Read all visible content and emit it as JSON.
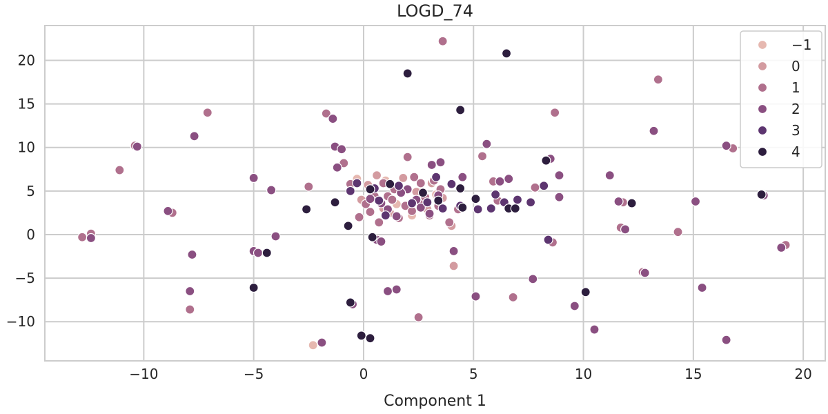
{
  "chart_data": {
    "type": "scatter",
    "title": "LOGD_74",
    "xlabel": "Component 1",
    "ylabel": "",
    "xlim": [
      -14.5,
      21
    ],
    "ylim": [
      -14.5,
      24
    ],
    "xticks": [
      -10,
      -5,
      0,
      5,
      10,
      15,
      20
    ],
    "yticks": [
      -10,
      -5,
      0,
      5,
      10,
      15,
      20
    ],
    "xtick_labels": [
      "−10",
      "−5",
      "0",
      "5",
      "10",
      "15",
      "20"
    ],
    "ytick_labels": [
      "−10",
      "−5",
      "0",
      "5",
      "10",
      "15",
      "20"
    ],
    "grid": true,
    "legend": {
      "placement": "top-right"
    },
    "series": [
      {
        "name": "−1",
        "color": "#e6b8b0",
        "points": [
          [
            -2.3,
            -12.7
          ],
          [
            1.5,
            3.5
          ],
          [
            0.4,
            4.8
          ],
          [
            2.2,
            2.2
          ],
          [
            -0.3,
            6.4
          ],
          [
            3.3,
            4.6
          ],
          [
            1.0,
            6.2
          ],
          [
            2.6,
            5.0
          ]
        ]
      },
      {
        "name": "0",
        "color": "#d39ba0",
        "points": [
          [
            4.1,
            -3.6
          ],
          [
            4.0,
            1.0
          ],
          [
            0.6,
            6.8
          ],
          [
            -0.1,
            4.0
          ],
          [
            1.8,
            6.5
          ],
          [
            2.9,
            2.9
          ],
          [
            3.6,
            4.2
          ],
          [
            1.2,
            2.5
          ],
          [
            0.2,
            5.7
          ],
          [
            2.4,
            4.9
          ],
          [
            0.9,
            3.0
          ],
          [
            3.1,
            5.9
          ]
        ]
      },
      {
        "name": "1",
        "color": "#b0708d",
        "points": [
          [
            -12.8,
            -0.3
          ],
          [
            -12.4,
            0.1
          ],
          [
            -11.1,
            7.4
          ],
          [
            -10.4,
            10.2
          ],
          [
            -8.7,
            2.5
          ],
          [
            -7.9,
            -8.6
          ],
          [
            -7.1,
            14.0
          ],
          [
            -2.5,
            5.5
          ],
          [
            -1.7,
            13.9
          ],
          [
            -0.9,
            8.2
          ],
          [
            -0.6,
            5.8
          ],
          [
            -0.2,
            2.0
          ],
          [
            0.3,
            2.6
          ],
          [
            0.7,
            1.4
          ],
          [
            1.1,
            4.4
          ],
          [
            1.4,
            5.2
          ],
          [
            1.6,
            1.9
          ],
          [
            2.0,
            8.9
          ],
          [
            2.3,
            6.6
          ],
          [
            2.5,
            -9.5
          ],
          [
            2.7,
            3.7
          ],
          [
            3.0,
            2.2
          ],
          [
            3.2,
            6.2
          ],
          [
            3.5,
            5.2
          ],
          [
            3.6,
            22.2
          ],
          [
            3.9,
            1.4
          ],
          [
            4.3,
            2.9
          ],
          [
            5.4,
            9.0
          ],
          [
            5.9,
            6.1
          ],
          [
            6.8,
            -7.2
          ],
          [
            7.8,
            5.4
          ],
          [
            8.6,
            -0.9
          ],
          [
            8.7,
            14.0
          ],
          [
            11.7,
            0.8
          ],
          [
            11.8,
            3.7
          ],
          [
            13.4,
            17.8
          ],
          [
            14.3,
            0.3
          ],
          [
            16.8,
            9.9
          ],
          [
            19.2,
            -1.2
          ],
          [
            12.7,
            -4.3
          ],
          [
            6.1,
            3.9
          ],
          [
            0.9,
            5.9
          ],
          [
            1.9,
            3.3
          ],
          [
            2.8,
            4.3
          ],
          [
            0.1,
            3.5
          ],
          [
            2.2,
            2.7
          ],
          [
            1.3,
            4.0
          ],
          [
            3.4,
            3.3
          ],
          [
            0.5,
            4.4
          ],
          [
            2.6,
            5.9
          ]
        ]
      },
      {
        "name": "2",
        "color": "#8a4f81",
        "points": [
          [
            -12.4,
            -0.4
          ],
          [
            -10.3,
            10.1
          ],
          [
            -8.9,
            2.7
          ],
          [
            -7.9,
            -6.5
          ],
          [
            -7.7,
            11.3
          ],
          [
            -7.8,
            -2.3
          ],
          [
            -5.0,
            6.5
          ],
          [
            -5.0,
            -1.9
          ],
          [
            -4.8,
            -2.1
          ],
          [
            -4.2,
            5.1
          ],
          [
            -4.0,
            -0.2
          ],
          [
            -1.9,
            -12.4
          ],
          [
            -1.4,
            13.3
          ],
          [
            -1.3,
            10.1
          ],
          [
            -1.2,
            7.7
          ],
          [
            -1.0,
            9.8
          ],
          [
            -0.5,
            -8.0
          ],
          [
            0.6,
            -0.6
          ],
          [
            0.8,
            -0.8
          ],
          [
            1.1,
            -6.5
          ],
          [
            1.5,
            -6.3
          ],
          [
            3.1,
            8.0
          ],
          [
            3.5,
            8.3
          ],
          [
            4.1,
            -1.9
          ],
          [
            4.5,
            6.6
          ],
          [
            5.1,
            -7.1
          ],
          [
            5.6,
            10.4
          ],
          [
            6.2,
            6.1
          ],
          [
            6.6,
            6.4
          ],
          [
            7.7,
            -5.1
          ],
          [
            8.5,
            8.7
          ],
          [
            8.9,
            6.8
          ],
          [
            8.9,
            4.3
          ],
          [
            9.6,
            -8.2
          ],
          [
            10.5,
            -10.9
          ],
          [
            11.2,
            6.8
          ],
          [
            11.6,
            3.8
          ],
          [
            11.9,
            0.6
          ],
          [
            12.8,
            -4.4
          ],
          [
            13.2,
            11.9
          ],
          [
            15.1,
            3.8
          ],
          [
            15.4,
            -6.1
          ],
          [
            16.5,
            -12.1
          ],
          [
            16.5,
            10.2
          ],
          [
            18.2,
            4.5
          ],
          [
            19.0,
            -1.5
          ],
          [
            2.0,
            5.2
          ],
          [
            1.1,
            2.9
          ],
          [
            3.4,
            4.5
          ],
          [
            0.3,
            4.1
          ],
          [
            2.6,
            3.1
          ],
          [
            1.7,
            4.8
          ],
          [
            3.0,
            2.4
          ],
          [
            0.8,
            3.6
          ],
          [
            2.4,
            4.0
          ],
          [
            1.5,
            2.1
          ]
        ]
      },
      {
        "name": "3",
        "color": "#5d3570",
        "points": [
          [
            -0.6,
            5.0
          ],
          [
            -0.3,
            5.9
          ],
          [
            0.5,
            5.3
          ],
          [
            1.0,
            2.2
          ],
          [
            2.2,
            3.6
          ],
          [
            3.3,
            6.6
          ],
          [
            4.0,
            5.8
          ],
          [
            4.4,
            3.3
          ],
          [
            5.2,
            2.9
          ],
          [
            5.8,
            3.0
          ],
          [
            6.0,
            4.6
          ],
          [
            6.4,
            3.7
          ],
          [
            7.0,
            4.0
          ],
          [
            7.6,
            3.7
          ],
          [
            8.2,
            5.6
          ],
          [
            8.4,
            -0.6
          ],
          [
            1.6,
            5.6
          ],
          [
            2.9,
            3.7
          ],
          [
            0.7,
            3.9
          ],
          [
            3.6,
            3.0
          ]
        ]
      },
      {
        "name": "4",
        "color": "#2d1e3e",
        "points": [
          [
            -5.0,
            -6.1
          ],
          [
            -4.4,
            -2.1
          ],
          [
            -2.6,
            2.9
          ],
          [
            -1.3,
            3.7
          ],
          [
            -0.7,
            1.0
          ],
          [
            -0.6,
            -7.8
          ],
          [
            -0.1,
            -11.6
          ],
          [
            0.3,
            -11.9
          ],
          [
            0.4,
            -0.3
          ],
          [
            2.0,
            18.5
          ],
          [
            4.4,
            14.3
          ],
          [
            4.4,
            5.3
          ],
          [
            4.5,
            3.1
          ],
          [
            5.1,
            4.1
          ],
          [
            6.5,
            20.8
          ],
          [
            6.6,
            3.0
          ],
          [
            8.3,
            8.5
          ],
          [
            10.1,
            -6.6
          ],
          [
            12.2,
            3.6
          ],
          [
            18.1,
            4.6
          ],
          [
            1.2,
            5.8
          ],
          [
            2.7,
            4.8
          ],
          [
            0.3,
            5.2
          ],
          [
            3.4,
            3.9
          ],
          [
            6.9,
            3.0
          ]
        ]
      }
    ]
  }
}
